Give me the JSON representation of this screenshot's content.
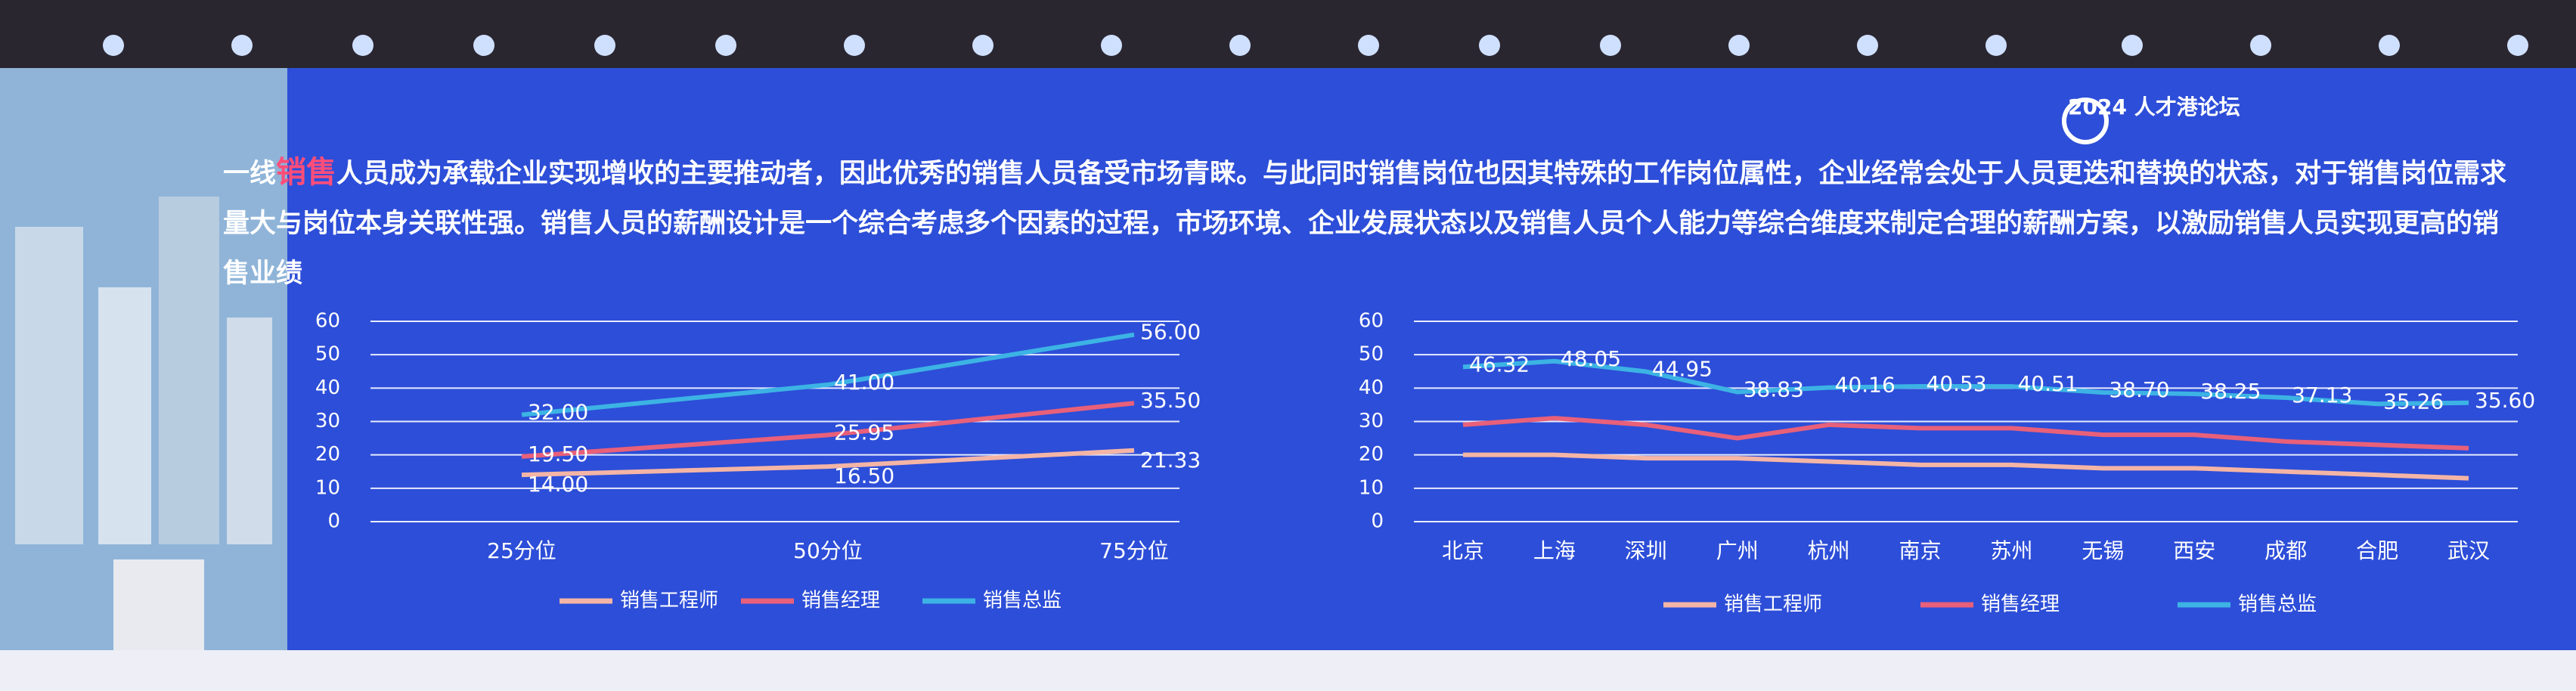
{
  "slide": {
    "logo_year": "2024",
    "logo_title": "人才港论坛",
    "paragraph": {
      "prefix": "一线",
      "highlight": "销售",
      "rest": "人员成为承载企业实现增收的主要推动者，因此优秀的销售人员备受市场青睐。与此同时销售岗位也因其特殊的工作岗位属性，企业经常会处于人员更迭和替换的状态，对于销售岗位需求量大与岗位本身关联性强。销售人员的薪酬设计是一个综合考虑多个因素的过程，市场环境、企业发展状态以及销售人员个人能力等综合维度来制定合理的薪酬方案，以激励销售人员实现更高的销售业绩"
    }
  },
  "chart_data": [
    {
      "type": "line",
      "categories": [
        "25分位",
        "50分位",
        "75分位"
      ],
      "ylim": [
        0,
        60
      ],
      "yticks": [
        0,
        10,
        20,
        30,
        40,
        50,
        60
      ],
      "grid": true,
      "series": [
        {
          "name": "销售工程师",
          "color": "#f4b5a6",
          "values": [
            14,
            16.5,
            21.33
          ],
          "value_labels": [
            "14.00",
            "16.50",
            "21.33"
          ]
        },
        {
          "name": "销售经理",
          "color": "#e8607a",
          "values": [
            19.5,
            25.95,
            35.5
          ],
          "value_labels": [
            "19.50",
            "25.95",
            "35.50"
          ]
        },
        {
          "name": "销售总监",
          "color": "#3cb3e4",
          "values": [
            32,
            41,
            56
          ],
          "value_labels": [
            "32.00",
            "41.00",
            "56.00"
          ]
        }
      ]
    },
    {
      "type": "line",
      "categories": [
        "北京",
        "上海",
        "深圳",
        "广州",
        "杭州",
        "南京",
        "苏州",
        "无锡",
        "西安",
        "成都",
        "合肥",
        "武汉"
      ],
      "ylim": [
        0,
        60
      ],
      "yticks": [
        0,
        10,
        20,
        30,
        40,
        50,
        60
      ],
      "grid": true,
      "series": [
        {
          "name": "销售工程师",
          "color": "#f4b5a6",
          "values": [
            20,
            20,
            19,
            19,
            18,
            17,
            17,
            16,
            16,
            15,
            14,
            13
          ]
        },
        {
          "name": "销售经理",
          "color": "#e8607a",
          "values": [
            29,
            31,
            29,
            25,
            29,
            28,
            28,
            26,
            26,
            24,
            23,
            22
          ]
        },
        {
          "name": "销售总监",
          "color": "#3cb3e4",
          "values": [
            46.32,
            48.05,
            44.95,
            38.83,
            40.16,
            40.53,
            40.51,
            38.7,
            38.25,
            37.13,
            35.26,
            35.6
          ],
          "value_labels": [
            "46.32",
            "48.05",
            "44.95",
            "38.83",
            "40.16",
            "40.53",
            "40.51",
            "38.70",
            "38.25",
            "37.13",
            "35.26",
            "35.60"
          ]
        }
      ]
    }
  ]
}
